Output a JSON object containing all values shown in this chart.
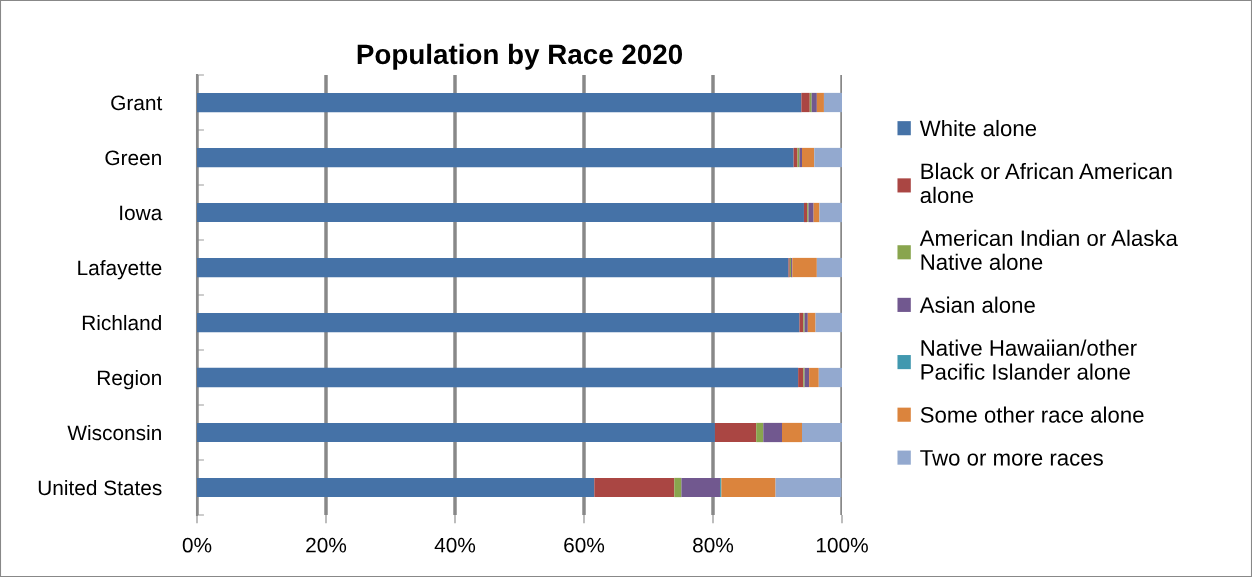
{
  "chart_data": {
    "type": "bar",
    "orientation": "horizontal",
    "stacked": true,
    "title": "Population by Race 2020",
    "categories": [
      "Grant",
      "Green",
      "Iowa",
      "Lafayette",
      "Richland",
      "Region",
      "Wisconsin",
      "United States"
    ],
    "series": [
      {
        "name": "White alone",
        "color": "#4572a7",
        "values": [
          93.7,
          92.5,
          94.1,
          91.7,
          93.4,
          93.2,
          80.3,
          61.6
        ]
      },
      {
        "name": "Black or African American alone",
        "color": "#aa4643",
        "values": [
          1.3,
          0.6,
          0.5,
          0.2,
          0.6,
          0.8,
          6.4,
          12.4
        ]
      },
      {
        "name": "American Indian or Alaska Native alone",
        "color": "#89a54e",
        "values": [
          0.3,
          0.3,
          0.2,
          0.2,
          0.2,
          0.2,
          1.1,
          1.1
        ]
      },
      {
        "name": "Asian alone",
        "color": "#71588f",
        "values": [
          0.8,
          0.4,
          0.8,
          0.2,
          0.5,
          0.7,
          2.9,
          6.0
        ]
      },
      {
        "name": "Native Hawaiian/other Pacific Islander alone",
        "color": "#4198af",
        "values": [
          0.0,
          0.0,
          0.0,
          0.0,
          0.0,
          0.0,
          0.0,
          0.2
        ]
      },
      {
        "name": "Some other race alone",
        "color": "#db843d",
        "values": [
          1.1,
          1.9,
          0.9,
          3.8,
          1.2,
          1.5,
          3.1,
          8.4
        ]
      },
      {
        "name": "Two or more races",
        "color": "#93a9cf",
        "values": [
          2.8,
          4.3,
          3.5,
          3.9,
          4.1,
          3.6,
          6.2,
          10.2
        ]
      }
    ],
    "xlim": [
      0,
      100
    ],
    "xticks": [
      {
        "value": 0,
        "label": "0%"
      },
      {
        "value": 20,
        "label": "20%"
      },
      {
        "value": 40,
        "label": "40%"
      },
      {
        "value": 60,
        "label": "60%"
      },
      {
        "value": 80,
        "label": "80%"
      },
      {
        "value": 100,
        "label": "100%"
      }
    ],
    "grid": "x",
    "legend": "right"
  }
}
